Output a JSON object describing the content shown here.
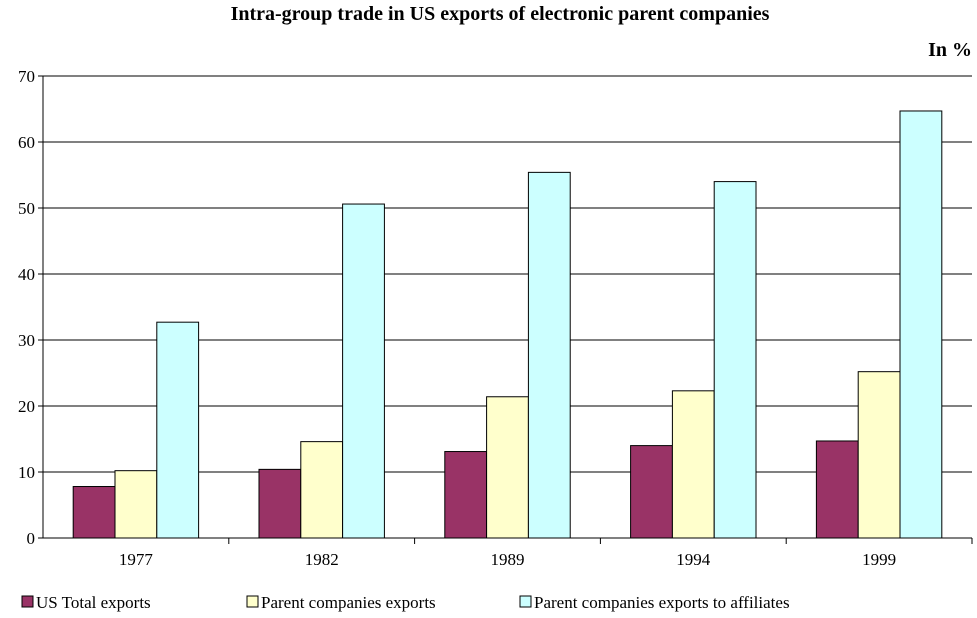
{
  "chart_data": {
    "type": "bar",
    "title": "Intra-group trade in US exports of electronic parent companies",
    "unit_label": "In %",
    "categories": [
      "1977",
      "1982",
      "1989",
      "1994",
      "1999"
    ],
    "series": [
      {
        "name": "US Total  exports",
        "color": "#993366",
        "values": [
          7.8,
          10.4,
          13.1,
          14.0,
          14.7
        ]
      },
      {
        "name": "Parent companies exports",
        "color": "#FFFFCC",
        "values": [
          10.2,
          14.6,
          21.4,
          22.3,
          25.2
        ]
      },
      {
        "name": "Parent companies exports to affiliates",
        "color": "#CCFFFF",
        "values": [
          32.7,
          50.6,
          55.4,
          54.0,
          64.7
        ]
      }
    ],
    "ylim": [
      0,
      70
    ],
    "yticks": [
      0,
      10,
      20,
      30,
      40,
      50,
      60,
      70
    ],
    "grid": true,
    "legend_position": "bottom-left"
  }
}
